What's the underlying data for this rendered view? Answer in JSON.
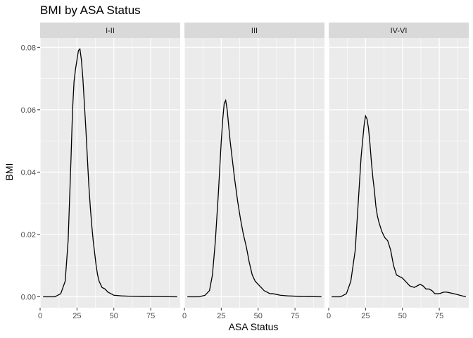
{
  "chart_data": {
    "type": "line",
    "title": "BMI by ASA Status",
    "xlabel": "ASA Status",
    "ylabel": "BMI",
    "xlim": [
      0,
      95
    ],
    "ylim": [
      -0.0035,
      0.083
    ],
    "x_ticks": [
      0,
      25,
      50,
      75
    ],
    "y_ticks": [
      0.0,
      0.02,
      0.04,
      0.06,
      0.08
    ],
    "y_tick_labels": [
      "0.00",
      "0.02",
      "0.04",
      "0.06",
      "0.08"
    ],
    "grid": true,
    "panel_background": "#ebebeb",
    "strip_background": "#d9d9d9",
    "line_color": "#000000",
    "facets": [
      {
        "label": "I-II",
        "x": [
          2,
          10,
          14,
          17,
          19,
          21,
          22,
          23,
          24,
          25,
          26,
          27,
          28,
          29,
          30,
          31,
          32,
          33,
          34,
          35,
          36,
          37,
          38,
          39,
          40,
          42,
          44,
          46,
          48,
          50,
          55,
          60,
          70,
          80,
          93
        ],
        "y": [
          0.0,
          0.0,
          0.001,
          0.005,
          0.018,
          0.045,
          0.06,
          0.069,
          0.073,
          0.076,
          0.079,
          0.0795,
          0.076,
          0.07,
          0.062,
          0.054,
          0.045,
          0.036,
          0.029,
          0.023,
          0.018,
          0.014,
          0.01,
          0.007,
          0.005,
          0.003,
          0.0025,
          0.0015,
          0.001,
          0.0005,
          0.0003,
          0.0002,
          0.0001,
          5e-05,
          0.0
        ]
      },
      {
        "label": "III",
        "x": [
          2,
          10,
          14,
          17,
          19,
          21,
          23,
          25,
          26,
          27,
          28,
          29,
          30,
          31,
          32,
          33,
          34,
          36,
          38,
          40,
          42,
          44,
          46,
          48,
          50,
          52,
          54,
          56,
          58,
          60,
          65,
          70,
          80,
          93
        ],
        "y": [
          0.0,
          0.0,
          0.0005,
          0.002,
          0.007,
          0.018,
          0.033,
          0.05,
          0.057,
          0.062,
          0.063,
          0.06,
          0.055,
          0.05,
          0.046,
          0.042,
          0.038,
          0.031,
          0.025,
          0.02,
          0.016,
          0.011,
          0.007,
          0.005,
          0.004,
          0.003,
          0.002,
          0.0015,
          0.001,
          0.001,
          0.0005,
          0.0003,
          0.0001,
          0.0
        ]
      },
      {
        "label": "IV-VI",
        "x": [
          2,
          8,
          12,
          15,
          18,
          20,
          22,
          24,
          25,
          26,
          27,
          28,
          29,
          30,
          31,
          32,
          33,
          34,
          36,
          38,
          40,
          42,
          44,
          46,
          48,
          50,
          52,
          55,
          58,
          60,
          62,
          64,
          66,
          68,
          70,
          72,
          75,
          78,
          80,
          85,
          93
        ],
        "y": [
          0.0,
          0.0,
          0.001,
          0.005,
          0.015,
          0.03,
          0.045,
          0.055,
          0.058,
          0.057,
          0.054,
          0.049,
          0.043,
          0.038,
          0.034,
          0.029,
          0.026,
          0.024,
          0.021,
          0.019,
          0.018,
          0.015,
          0.01,
          0.007,
          0.0065,
          0.006,
          0.005,
          0.0035,
          0.003,
          0.0035,
          0.004,
          0.0035,
          0.0025,
          0.0025,
          0.002,
          0.001,
          0.001,
          0.0015,
          0.0015,
          0.001,
          0.0
        ]
      }
    ]
  }
}
